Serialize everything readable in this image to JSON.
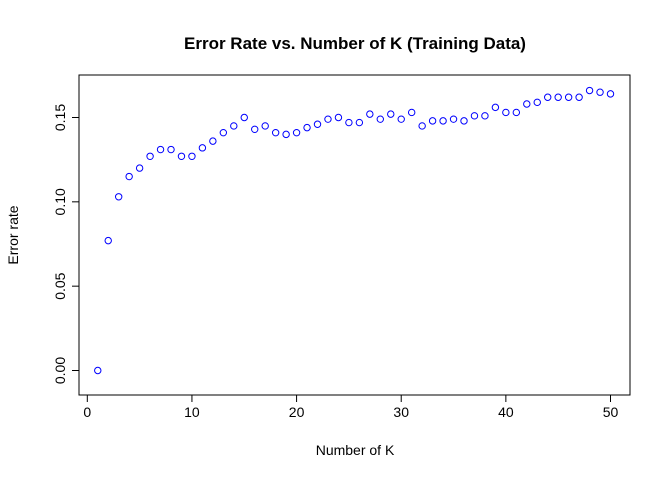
{
  "chart_data": {
    "type": "scatter",
    "title": "Error Rate vs. Number of K (Training Data)",
    "xlabel": "Number of K",
    "ylabel": "Error rate",
    "xlim": [
      0,
      52
    ],
    "ylim": [
      -0.005,
      0.172
    ],
    "x_ticks": [
      0,
      10,
      20,
      30,
      40,
      50
    ],
    "y_ticks": [
      0.0,
      0.05,
      0.1,
      0.15
    ],
    "x_tick_labels": [
      "0",
      "10",
      "20",
      "30",
      "40",
      "50"
    ],
    "y_tick_labels": [
      "0.00",
      "0.05",
      "0.10",
      "0.15"
    ],
    "point_color": "#0000ff",
    "grid": false,
    "x": [
      1,
      2,
      3,
      4,
      5,
      6,
      7,
      8,
      9,
      10,
      11,
      12,
      13,
      14,
      15,
      16,
      17,
      18,
      19,
      20,
      21,
      22,
      23,
      24,
      25,
      26,
      27,
      28,
      29,
      30,
      31,
      32,
      33,
      34,
      35,
      36,
      37,
      38,
      39,
      40,
      41,
      42,
      43,
      44,
      45,
      46,
      47,
      48,
      49,
      50
    ],
    "y": [
      0.0,
      0.077,
      0.103,
      0.115,
      0.12,
      0.127,
      0.131,
      0.131,
      0.127,
      0.127,
      0.132,
      0.136,
      0.141,
      0.145,
      0.15,
      0.143,
      0.145,
      0.141,
      0.14,
      0.141,
      0.144,
      0.146,
      0.149,
      0.15,
      0.147,
      0.147,
      0.152,
      0.149,
      0.152,
      0.149,
      0.153,
      0.145,
      0.148,
      0.148,
      0.149,
      0.148,
      0.151,
      0.151,
      0.156,
      0.153,
      0.153,
      0.158,
      0.159,
      0.162,
      0.162,
      0.162,
      0.162,
      0.166,
      0.165,
      0.164
    ]
  }
}
